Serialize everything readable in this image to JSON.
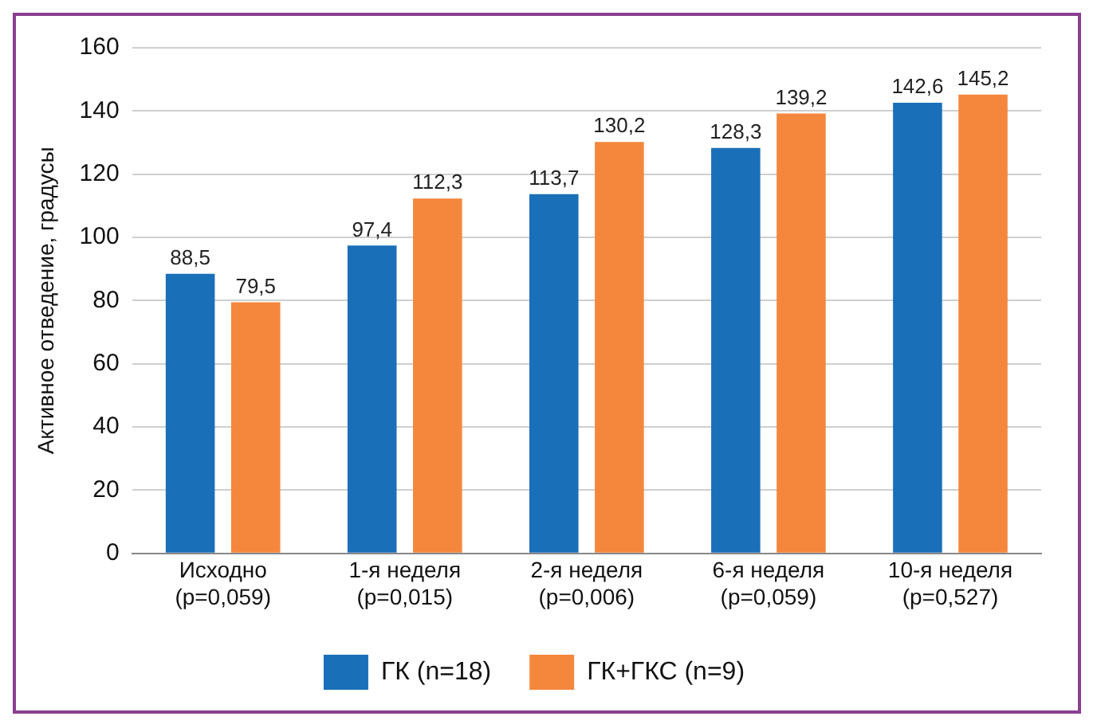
{
  "chart_data": {
    "type": "bar",
    "ylabel": "Активное отведение, градусы",
    "categories": [
      "Исходно\n(p=0,059)",
      "1-я неделя\n(p=0,015)",
      "2-я неделя\n(p=0,006)",
      "6-я неделя\n(p=0,059)",
      "10-я неделя\n(p=0,527)"
    ],
    "series": [
      {
        "name": "ГК (n=18)",
        "color": "#1a6fb9",
        "values": [
          88.5,
          97.4,
          113.7,
          128.3,
          142.6
        ],
        "value_labels": [
          "88,5",
          "97,4",
          "113,7",
          "128,3",
          "142,6"
        ]
      },
      {
        "name": "ГК+ГКС (n=9)",
        "color": "#f5873d",
        "values": [
          79.5,
          112.3,
          130.2,
          139.2,
          145.2
        ],
        "value_labels": [
          "79,5",
          "112,3",
          "130,2",
          "139,2",
          "145,2"
        ]
      }
    ],
    "ylim": [
      0,
      160
    ],
    "yticks": [
      0,
      20,
      40,
      60,
      80,
      100,
      120,
      140,
      160
    ],
    "grid": "y",
    "legend": "bottom"
  }
}
